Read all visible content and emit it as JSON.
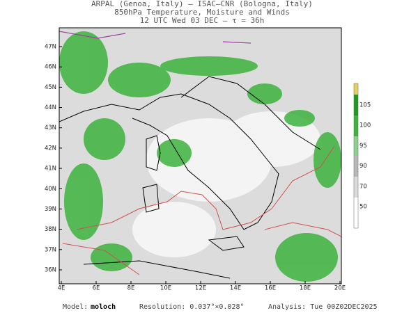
{
  "header": {
    "lines": [
      "ARPAL (Genoa, Italy)  –  ISAC–CNR (Bologna, Italy)",
      "850hPa Temperature, Moisture and Winds",
      "12 UTC Wed 03 DEC  –  τ = 36h"
    ]
  },
  "map": {
    "lon_labels": [
      "4E",
      "6E",
      "8E",
      "10E",
      "12E",
      "14E",
      "16E",
      "18E",
      "20E"
    ],
    "lat_labels": [
      "47N",
      "46N",
      "45N",
      "44N",
      "43N",
      "42N",
      "41N",
      "40N",
      "39N",
      "38N",
      "37N",
      "36N"
    ]
  },
  "colorbar": {
    "labels": [
      "105",
      "100",
      "95",
      "90",
      "70",
      "50"
    ]
  },
  "footer": {
    "model_label": "Model:",
    "model": "moloch",
    "resolution": "Resolution: 0.037°×0.028°",
    "analysis": "Analysis: Tue 00Z02DEC2025"
  }
}
